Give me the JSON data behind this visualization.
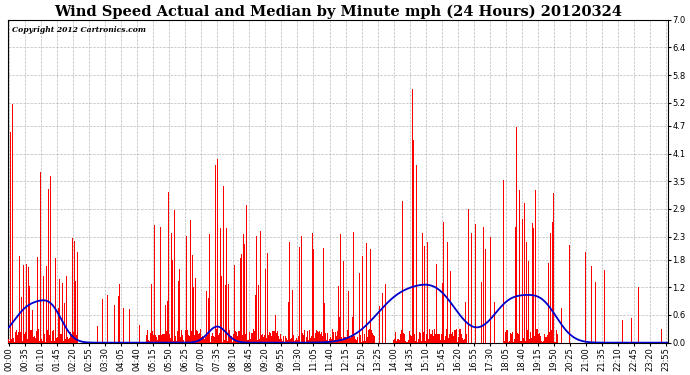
{
  "title": "Wind Speed Actual and Median by Minute mph (24 Hours) 20120324",
  "copyright_text": "Copyright 2012 Cartronics.com",
  "ylim": [
    0.0,
    7.0
  ],
  "yticks": [
    0.0,
    0.6,
    1.2,
    1.8,
    2.3,
    2.9,
    3.5,
    4.1,
    4.7,
    5.2,
    5.8,
    6.4,
    7.0
  ],
  "actual_color": "#FF0000",
  "median_color": "#0000CC",
  "bg_color": "#FFFFFF",
  "plot_bg_color": "#FFFFFF",
  "grid_color": "#AAAAAA",
  "title_fontsize": 10.5,
  "tick_fontsize": 6.0,
  "total_minutes": 1440,
  "tick_step": 35,
  "figwidth": 6.9,
  "figheight": 3.75,
  "dpi": 100
}
